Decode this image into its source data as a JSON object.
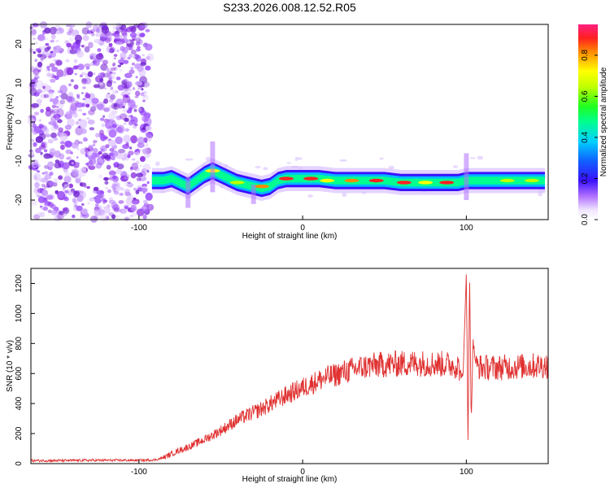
{
  "title": "S233.2026.008.12.52.R05",
  "chart_data": [
    {
      "type": "heatmap",
      "xlabel": "Height of straight line (km)",
      "ylabel": "Frequency (Hz)",
      "xlim": [
        -166,
        150
      ],
      "ylim": [
        -25,
        25
      ],
      "xticks": [
        -100,
        0,
        100
      ],
      "yticks": [
        -20,
        -10,
        0,
        10,
        20
      ],
      "colorbar": {
        "label": "Normalized spectral amplitude",
        "range": [
          0,
          0.95
        ],
        "ticks": [
          0.0,
          0.2,
          0.4,
          0.6,
          0.8
        ]
      },
      "noise_region_x": [
        -166,
        -90
      ],
      "ridge": {
        "x": [
          -92,
          -85,
          -80,
          -75,
          -70,
          -65,
          -60,
          -55,
          -50,
          -45,
          -40,
          -35,
          -30,
          -25,
          -20,
          -15,
          -10,
          -5,
          0,
          5,
          10,
          20,
          30,
          40,
          50,
          60,
          70,
          80,
          90,
          95,
          100,
          110,
          120,
          130,
          140,
          148
        ],
        "y": [
          -15,
          -15,
          -14.5,
          -15.5,
          -16.5,
          -15,
          -13.5,
          -12.5,
          -13.5,
          -14.5,
          -15.5,
          -16,
          -16.5,
          -17,
          -16.5,
          -15,
          -14.5,
          -14.5,
          -14.5,
          -14.5,
          -14.5,
          -15,
          -15,
          -15,
          -15,
          -15.5,
          -15.5,
          -15.5,
          -15.5,
          -15.5,
          -15,
          -15,
          -15,
          -15,
          -15,
          -15
        ]
      }
    },
    {
      "type": "line",
      "xlabel": "Height of straight line (km)",
      "ylabel": "SNR (10 * v/v)",
      "xlim": [
        -166,
        150
      ],
      "ylim": [
        0,
        1300
      ],
      "xticks": [
        -100,
        0,
        100
      ],
      "yticks": [
        0,
        200,
        400,
        600,
        800,
        1000,
        1200
      ],
      "series": [
        {
          "color": "#e03030",
          "x": [
            -166,
            -150,
            -130,
            -110,
            -100,
            -90,
            -85,
            -80,
            -75,
            -70,
            -65,
            -60,
            -55,
            -50,
            -45,
            -40,
            -35,
            -30,
            -25,
            -20,
            -15,
            -10,
            -5,
            0,
            5,
            10,
            15,
            20,
            25,
            30,
            40,
            50,
            60,
            70,
            80,
            90,
            95,
            98,
            100,
            101,
            102,
            103,
            104,
            106,
            110,
            120,
            130,
            140,
            150
          ],
          "y": [
            20,
            20,
            22,
            22,
            22,
            25,
            40,
            65,
            90,
            110,
            135,
            160,
            190,
            220,
            255,
            290,
            315,
            340,
            365,
            395,
            425,
            455,
            480,
            505,
            530,
            555,
            575,
            590,
            610,
            625,
            650,
            660,
            665,
            670,
            665,
            660,
            650,
            560,
            1300,
            120,
            1280,
            240,
            820,
            650,
            640,
            640,
            645,
            650,
            655
          ]
        }
      ]
    }
  ]
}
